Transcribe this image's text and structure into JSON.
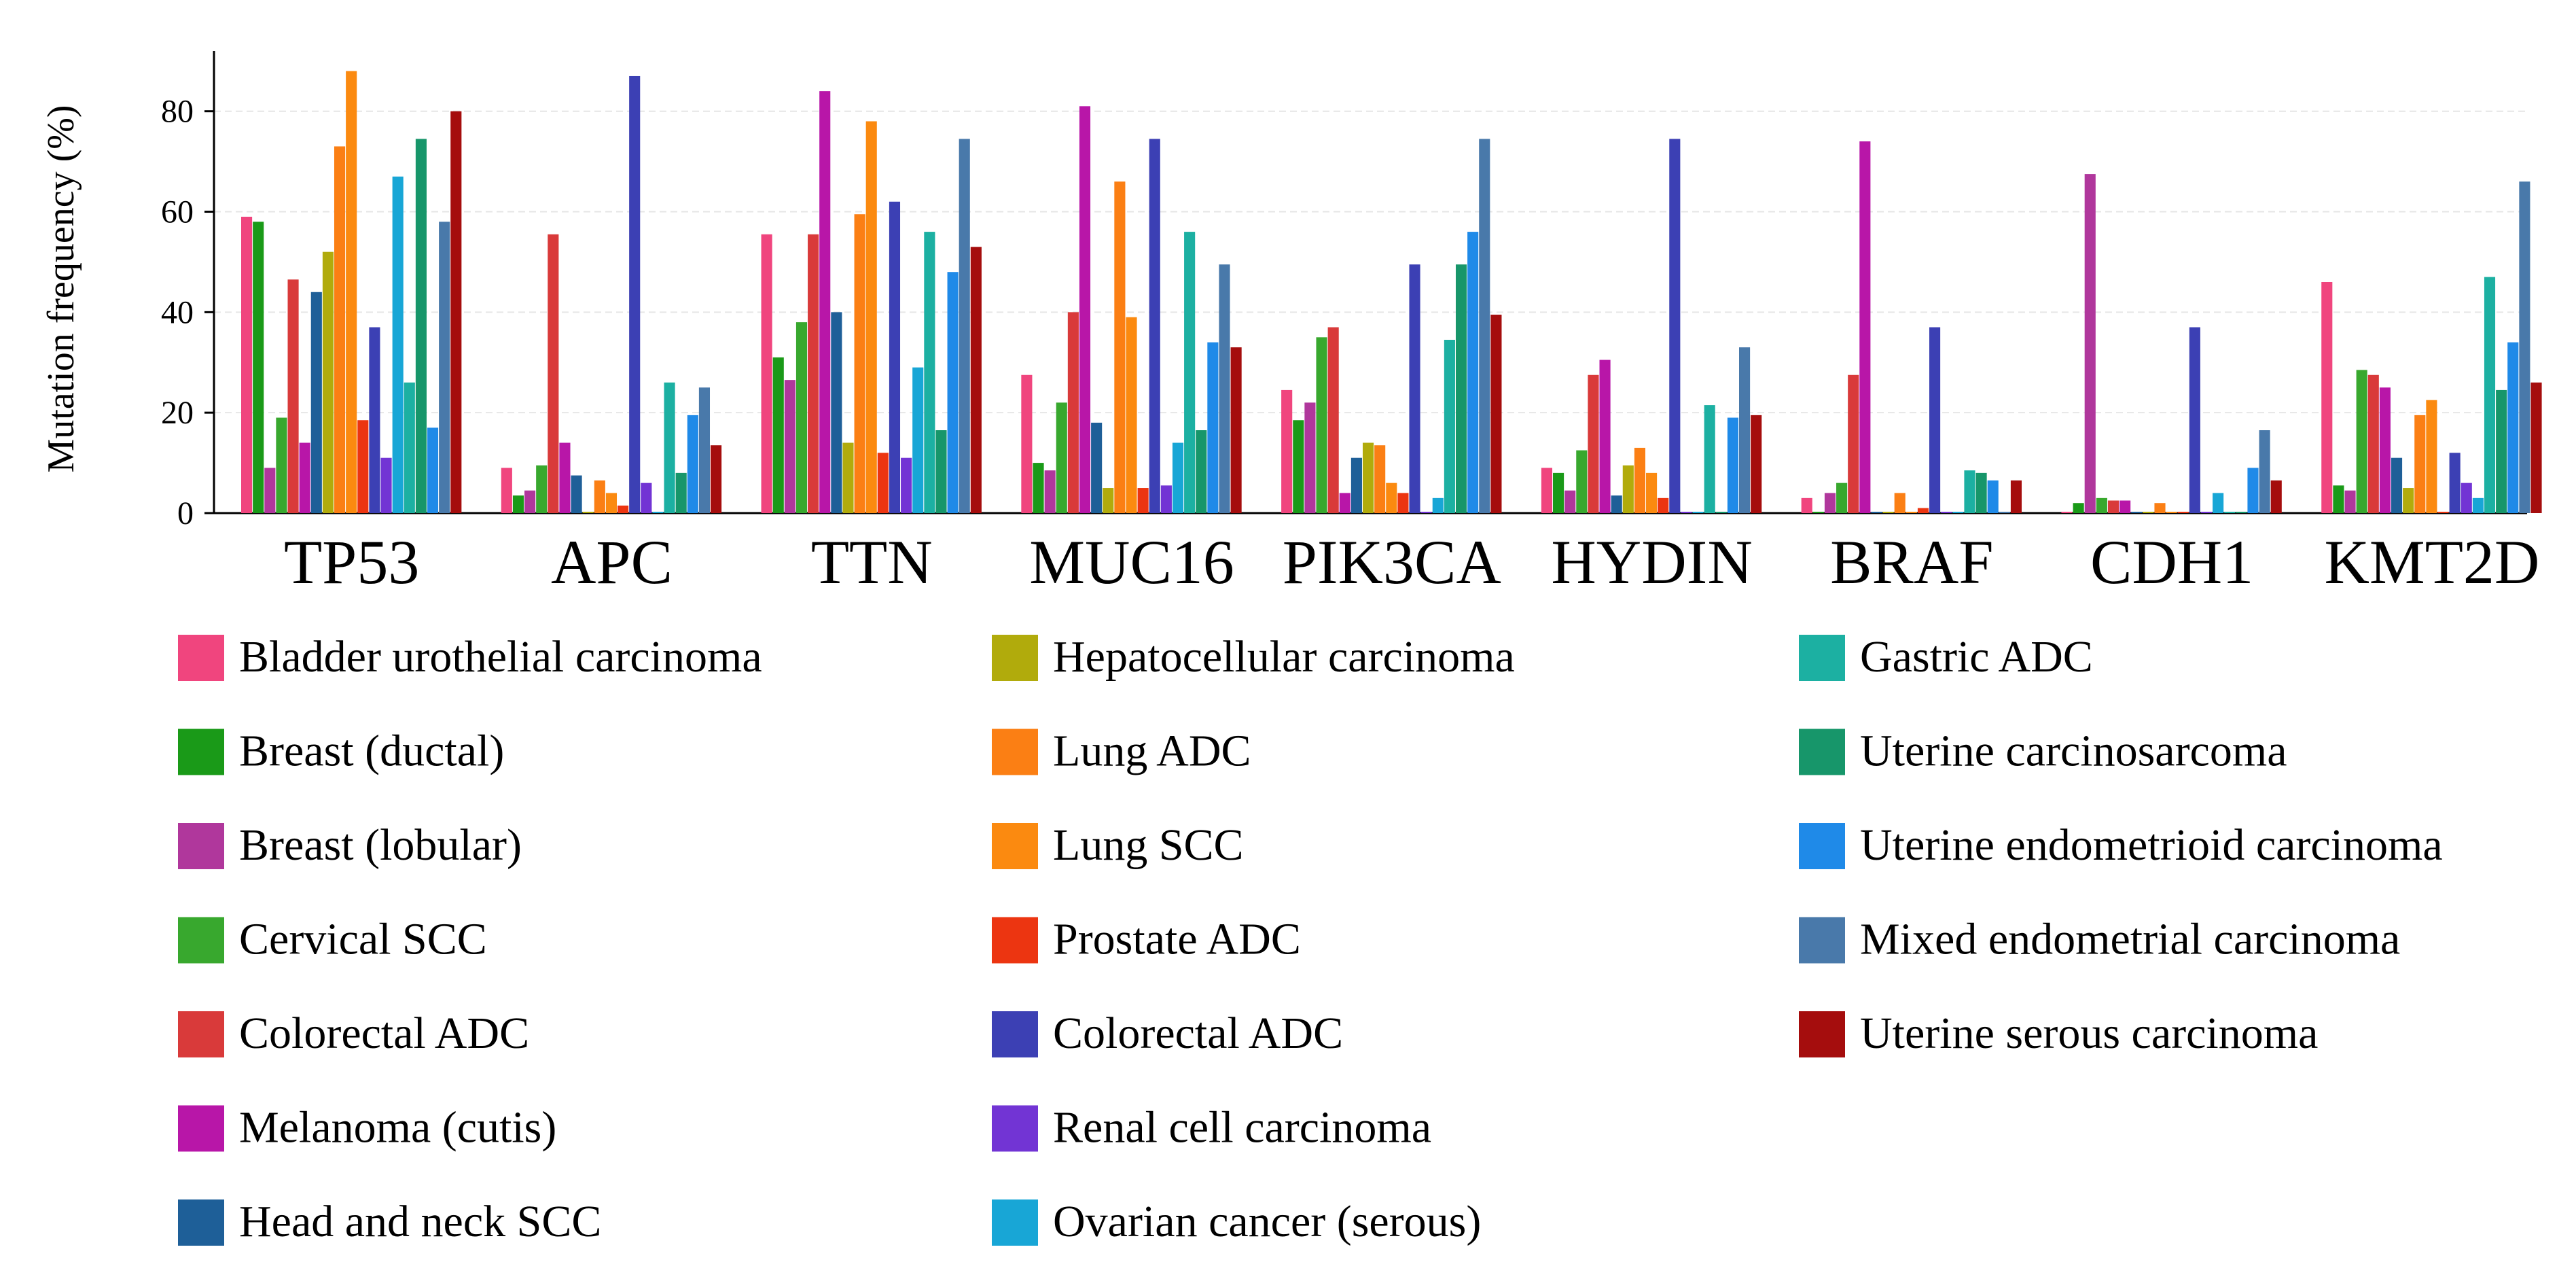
{
  "chart_data": {
    "type": "bar",
    "title": "",
    "xlabel": "",
    "ylabel": "Mutation frequency (%)",
    "ylim": [
      0,
      92
    ],
    "yticks": [
      "0",
      "20",
      "40",
      "60",
      "80"
    ],
    "grid": true,
    "legend_placement": "bottom",
    "categories": [
      "TP53",
      "APC",
      "TTN",
      "MUC16",
      "PIK3CA",
      "HYDIN",
      "BRAF",
      "CDH1",
      "KMT2D"
    ],
    "series": [
      {
        "name": "Bladder urothelial carcinoma",
        "color": "#f0457e",
        "values": [
          59,
          9,
          55.5,
          27.5,
          24.5,
          9,
          3,
          0,
          46
        ]
      },
      {
        "name": "Breast (ductal)",
        "color": "#1a9a18",
        "values": [
          58,
          3.5,
          31,
          10,
          18.5,
          8,
          0,
          2,
          5.5
        ]
      },
      {
        "name": "Breast (lobular)",
        "color": "#b0379c",
        "values": [
          9,
          4.5,
          26.5,
          8.5,
          22,
          4.5,
          4,
          67.5,
          4.5
        ]
      },
      {
        "name": "Cervical SCC",
        "color": "#38a82e",
        "values": [
          19,
          9.5,
          38,
          22,
          35,
          12.5,
          6,
          3,
          28.5
        ]
      },
      {
        "name": "Colorectal ADC",
        "color": "#d93a3a",
        "values": [
          46.5,
          55.5,
          55.5,
          40,
          37,
          27.5,
          27.5,
          2.5,
          27.5
        ]
      },
      {
        "name": "Melanoma (cutis)",
        "color": "#b816a8",
        "values": [
          14,
          14,
          84,
          81,
          4,
          30.5,
          74,
          2.5,
          25
        ]
      },
      {
        "name": "Head and neck SCC",
        "color": "#1e5f98",
        "values": [
          44,
          7.5,
          40,
          18,
          11,
          3.5,
          0,
          0,
          11
        ]
      },
      {
        "name": "Hepatocellular carcinoma",
        "color": "#b1ab0c",
        "values": [
          52,
          0,
          14,
          5,
          14,
          9.5,
          0,
          0,
          5
        ]
      },
      {
        "name": "Lung ADC",
        "color": "#fb7f14",
        "values": [
          73,
          6.5,
          59.5,
          66,
          13.5,
          13,
          4,
          2,
          19.5
        ]
      },
      {
        "name": "Lung SCC",
        "color": "#fb8a10",
        "values": [
          88,
          4,
          78,
          39,
          6,
          8,
          0,
          0,
          22.5
        ]
      },
      {
        "name": "Prostate ADC",
        "color": "#ec3511",
        "values": [
          18.5,
          1.5,
          12,
          5,
          4,
          3,
          1,
          0,
          0
        ]
      },
      {
        "name": "Colorectal ADC",
        "color": "#3c40b4",
        "values": [
          37,
          87,
          62,
          74.5,
          49.5,
          74.5,
          37,
          37,
          12
        ]
      },
      {
        "name": "Renal cell carcinoma",
        "color": "#7234d4",
        "values": [
          11,
          6,
          11,
          5.5,
          0,
          0,
          0,
          0,
          6
        ]
      },
      {
        "name": "Ovarian cancer (serous)",
        "color": "#18a6d6",
        "values": [
          67,
          0,
          29,
          14,
          3,
          0,
          0,
          4,
          3
        ]
      },
      {
        "name": "Gastric ADC",
        "color": "#1cb0a2",
        "values": [
          26,
          26,
          56,
          56,
          34.5,
          21.5,
          8.5,
          0,
          47
        ]
      },
      {
        "name": "Uterine carcinosarcoma",
        "color": "#17966a",
        "values": [
          74.5,
          8,
          16.5,
          16.5,
          49.5,
          0,
          8,
          0,
          24.5
        ]
      },
      {
        "name": "Uterine endometrioid carcinoma",
        "color": "#1f8ae8",
        "values": [
          17,
          19.5,
          48,
          34,
          56,
          19,
          6.5,
          9,
          34
        ]
      },
      {
        "name": "Mixed endometrial carcinoma",
        "color": "#4979aa",
        "values": [
          58,
          25,
          74.5,
          49.5,
          74.5,
          33,
          0,
          16.5,
          66
        ]
      },
      {
        "name": "Uterine serous carcinoma",
        "color": "#a50d0d",
        "values": [
          80,
          13.5,
          53,
          33,
          39.5,
          19.5,
          6.5,
          6.5,
          26
        ]
      }
    ]
  }
}
